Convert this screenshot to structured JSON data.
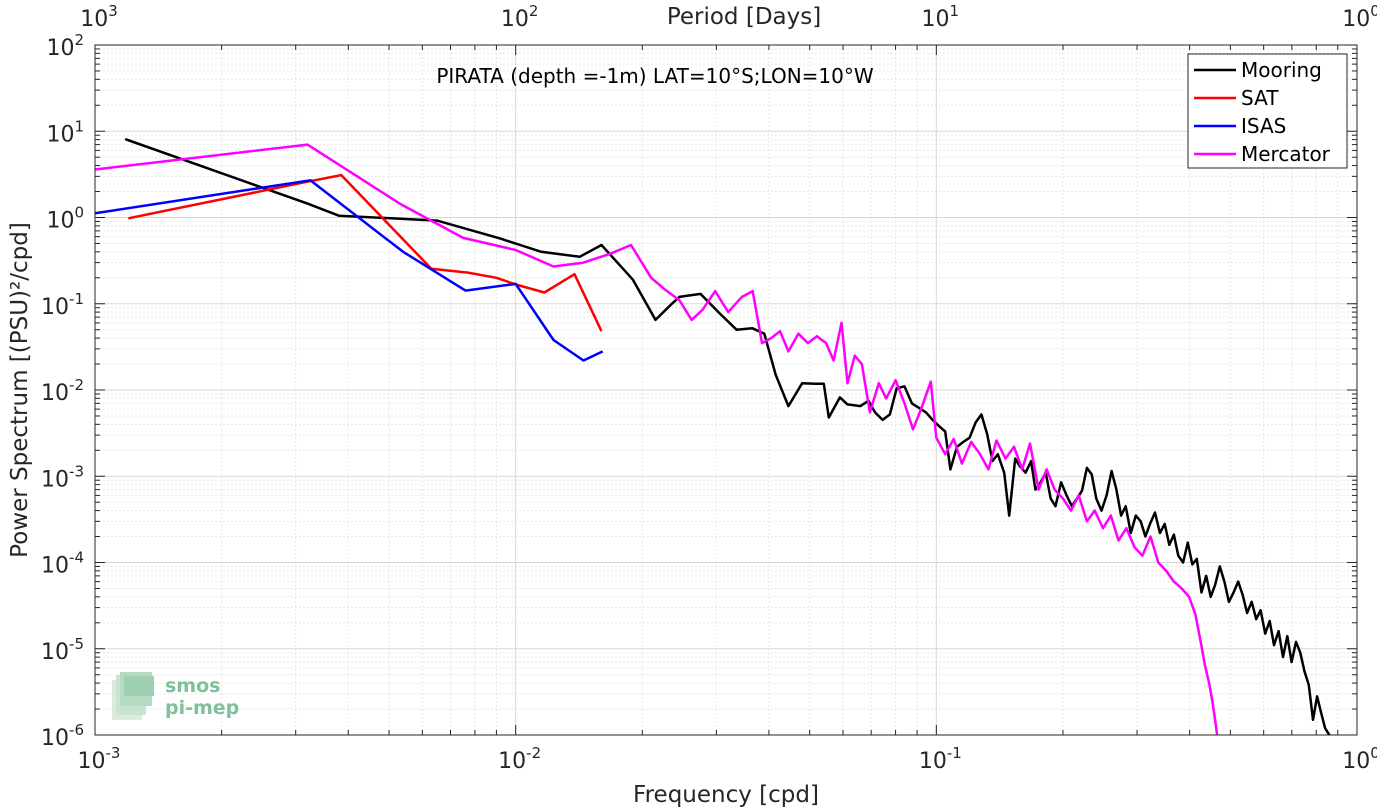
{
  "chart_data": {
    "type": "line",
    "xscale": "log",
    "yscale": "log",
    "xlabel": "Frequency [cpd]",
    "ylabel": "Power Spectrum [(PSU)²/cpd]",
    "top_xlabel": "Period [Days]",
    "xlim": [
      0.001,
      1
    ],
    "ylim": [
      1e-06,
      100
    ],
    "grid": true,
    "legend_position": "top-right",
    "annotation": "PIRATA (depth =-1m) LAT=10°S;LON=10°W",
    "x_ticks": [
      {
        "base": "10",
        "exp": "-3",
        "value": 0.001
      },
      {
        "base": "10",
        "exp": "-2",
        "value": 0.01
      },
      {
        "base": "10",
        "exp": "-1",
        "value": 0.1
      },
      {
        "base": "10",
        "exp": "0",
        "value": 1
      }
    ],
    "top_ticks": [
      {
        "base": "10",
        "exp": "3",
        "value": 0.001
      },
      {
        "base": "10",
        "exp": "2",
        "value": 0.01
      },
      {
        "base": "10",
        "exp": "1",
        "value": 0.1
      },
      {
        "base": "10",
        "exp": "0",
        "value": 1
      }
    ],
    "y_ticks": [
      {
        "base": "10",
        "exp": "2",
        "value": 100
      },
      {
        "base": "10",
        "exp": "1",
        "value": 10
      },
      {
        "base": "10",
        "exp": "0",
        "value": 1
      },
      {
        "base": "10",
        "exp": "-1",
        "value": 0.1
      },
      {
        "base": "10",
        "exp": "-2",
        "value": 0.01
      },
      {
        "base": "10",
        "exp": "-3",
        "value": 0.001
      },
      {
        "base": "10",
        "exp": "-4",
        "value": 0.0001
      },
      {
        "base": "10",
        "exp": "-5",
        "value": 1e-05
      },
      {
        "base": "10",
        "exp": "-6",
        "value": 1e-06
      }
    ],
    "series": [
      {
        "name": "Mooring",
        "color": "#000000",
        "points": [
          [
            0.00118,
            8.1
          ],
          [
            0.0032,
            1.45
          ],
          [
            0.0038,
            1.05
          ],
          [
            0.0065,
            0.92
          ],
          [
            0.0092,
            0.57
          ],
          [
            0.0115,
            0.4
          ],
          [
            0.0142,
            0.35
          ],
          [
            0.016,
            0.48
          ],
          [
            0.019,
            0.19
          ],
          [
            0.0215,
            0.065
          ],
          [
            0.0235,
            0.1
          ],
          [
            0.0245,
            0.12
          ],
          [
            0.0275,
            0.13
          ],
          [
            0.0305,
            0.078
          ],
          [
            0.0335,
            0.05
          ],
          [
            0.0365,
            0.052
          ],
          [
            0.039,
            0.045
          ],
          [
            0.0415,
            0.015
          ],
          [
            0.0445,
            0.0065
          ],
          [
            0.048,
            0.012
          ],
          [
            0.0515,
            0.0118
          ],
          [
            0.054,
            0.0118
          ],
          [
            0.0555,
            0.0048
          ],
          [
            0.059,
            0.0082
          ],
          [
            0.0615,
            0.0068
          ],
          [
            0.066,
            0.0065
          ],
          [
            0.069,
            0.0075
          ],
          [
            0.0715,
            0.0055
          ],
          [
            0.0745,
            0.0045
          ],
          [
            0.0775,
            0.0052
          ],
          [
            0.0805,
            0.0105
          ],
          [
            0.084,
            0.011
          ],
          [
            0.0875,
            0.007
          ],
          [
            0.091,
            0.0062
          ],
          [
            0.0945,
            0.0055
          ],
          [
            0.098,
            0.0045
          ],
          [
            0.1015,
            0.0038
          ],
          [
            0.105,
            0.0033
          ],
          [
            0.108,
            0.0012
          ],
          [
            0.112,
            0.0022
          ],
          [
            0.116,
            0.0025
          ],
          [
            0.12,
            0.0028
          ],
          [
            0.124,
            0.0042
          ],
          [
            0.128,
            0.0052
          ],
          [
            0.132,
            0.0031
          ],
          [
            0.136,
            0.0015
          ],
          [
            0.14,
            0.0018
          ],
          [
            0.145,
            0.0011
          ],
          [
            0.149,
            0.00035
          ],
          [
            0.154,
            0.0016
          ],
          [
            0.158,
            0.0013
          ],
          [
            0.163,
            0.0011
          ],
          [
            0.168,
            0.0015
          ],
          [
            0.172,
            0.0007
          ],
          [
            0.177,
            0.00085
          ],
          [
            0.182,
            0.0011
          ],
          [
            0.187,
            0.00055
          ],
          [
            0.192,
            0.00045
          ],
          [
            0.198,
            0.00085
          ],
          [
            0.204,
            0.0006
          ],
          [
            0.21,
            0.00045
          ],
          [
            0.216,
            0.00055
          ],
          [
            0.222,
            0.00068
          ],
          [
            0.228,
            0.00125
          ],
          [
            0.234,
            0.00105
          ],
          [
            0.24,
            0.00055
          ],
          [
            0.247,
            0.0004
          ],
          [
            0.254,
            0.0006
          ],
          [
            0.261,
            0.00115
          ],
          [
            0.268,
            0.0007
          ],
          [
            0.275,
            0.00035
          ],
          [
            0.282,
            0.00045
          ],
          [
            0.29,
            0.00022
          ],
          [
            0.298,
            0.00035
          ],
          [
            0.306,
            0.0003
          ],
          [
            0.314,
            0.0002
          ],
          [
            0.322,
            0.00028
          ],
          [
            0.331,
            0.00038
          ],
          [
            0.34,
            0.00022
          ],
          [
            0.349,
            0.00028
          ],
          [
            0.358,
            0.00016
          ],
          [
            0.367,
            0.00021
          ],
          [
            0.376,
            0.00012
          ],
          [
            0.386,
            0.0001
          ],
          [
            0.396,
            0.00017
          ],
          [
            0.406,
            9.5e-05
          ],
          [
            0.416,
            0.00011
          ],
          [
            0.427,
            4.5e-05
          ],
          [
            0.438,
            7e-05
          ],
          [
            0.449,
            4e-05
          ],
          [
            0.46,
            5.5e-05
          ],
          [
            0.472,
            9e-05
          ],
          [
            0.484,
            6e-05
          ],
          [
            0.496,
            3.5e-05
          ],
          [
            0.509,
            4.5e-05
          ],
          [
            0.522,
            6e-05
          ],
          [
            0.535,
            4.2e-05
          ],
          [
            0.548,
            2.6e-05
          ],
          [
            0.562,
            3.5e-05
          ],
          [
            0.576,
            2.2e-05
          ],
          [
            0.59,
            2.8e-05
          ],
          [
            0.605,
            1.5e-05
          ],
          [
            0.62,
            2.1e-05
          ],
          [
            0.635,
            1.1e-05
          ],
          [
            0.651,
            1.6e-05
          ],
          [
            0.667,
            8e-06
          ],
          [
            0.683,
            1.4e-05
          ],
          [
            0.699,
            7e-06
          ],
          [
            0.716,
            1.2e-05
          ],
          [
            0.733,
            9e-06
          ],
          [
            0.75,
            5.5e-06
          ],
          [
            0.768,
            3.8e-06
          ],
          [
            0.786,
            1.5e-06
          ],
          [
            0.804,
            2.8e-06
          ],
          [
            0.822,
            1.8e-06
          ],
          [
            0.84,
            1.2e-06
          ],
          [
            0.86,
            1e-06
          ]
        ]
      },
      {
        "name": "SAT",
        "color": "#ff0000",
        "points": [
          [
            0.0012,
            0.98
          ],
          [
            0.0032,
            2.6
          ],
          [
            0.00385,
            3.1
          ],
          [
            0.0063,
            0.255
          ],
          [
            0.0077,
            0.23
          ],
          [
            0.009,
            0.2
          ],
          [
            0.0101,
            0.165
          ],
          [
            0.0117,
            0.135
          ],
          [
            0.0138,
            0.22
          ],
          [
            0.016,
            0.048
          ]
        ]
      },
      {
        "name": "ISAS",
        "color": "#0000ff",
        "points": [
          [
            0.001,
            1.12
          ],
          [
            0.00325,
            2.7
          ],
          [
            0.0054,
            0.4
          ],
          [
            0.0076,
            0.142
          ],
          [
            0.01,
            0.17
          ],
          [
            0.0123,
            0.038
          ],
          [
            0.0145,
            0.022
          ],
          [
            0.0161,
            0.028
          ]
        ]
      },
      {
        "name": "Mercator",
        "color": "#ff00ff",
        "points": [
          [
            0.001,
            3.6
          ],
          [
            0.0032,
            7.0
          ],
          [
            0.0053,
            1.45
          ],
          [
            0.0075,
            0.58
          ],
          [
            0.01,
            0.42
          ],
          [
            0.0123,
            0.27
          ],
          [
            0.0145,
            0.3
          ],
          [
            0.0168,
            0.38
          ],
          [
            0.0188,
            0.48
          ],
          [
            0.021,
            0.2
          ],
          [
            0.0225,
            0.15
          ],
          [
            0.0245,
            0.11
          ],
          [
            0.0262,
            0.065
          ],
          [
            0.0278,
            0.085
          ],
          [
            0.0298,
            0.14
          ],
          [
            0.032,
            0.08
          ],
          [
            0.0345,
            0.12
          ],
          [
            0.0366,
            0.14
          ],
          [
            0.0385,
            0.035
          ],
          [
            0.0405,
            0.04
          ],
          [
            0.0425,
            0.048
          ],
          [
            0.0445,
            0.028
          ],
          [
            0.047,
            0.045
          ],
          [
            0.0495,
            0.035
          ],
          [
            0.052,
            0.042
          ],
          [
            0.0547,
            0.035
          ],
          [
            0.057,
            0.022
          ],
          [
            0.0595,
            0.06
          ],
          [
            0.0615,
            0.012
          ],
          [
            0.064,
            0.025
          ],
          [
            0.0665,
            0.02
          ],
          [
            0.0695,
            0.0055
          ],
          [
            0.073,
            0.012
          ],
          [
            0.076,
            0.008
          ],
          [
            0.08,
            0.013
          ],
          [
            0.084,
            0.007
          ],
          [
            0.088,
            0.0035
          ],
          [
            0.092,
            0.006
          ],
          [
            0.097,
            0.0125
          ],
          [
            0.1,
            0.0028
          ],
          [
            0.105,
            0.0018
          ],
          [
            0.11,
            0.0027
          ],
          [
            0.115,
            0.0014
          ],
          [
            0.121,
            0.0025
          ],
          [
            0.127,
            0.0018
          ],
          [
            0.133,
            0.0012
          ],
          [
            0.139,
            0.0026
          ],
          [
            0.146,
            0.0016
          ],
          [
            0.153,
            0.0022
          ],
          [
            0.16,
            0.0012
          ],
          [
            0.167,
            0.0024
          ],
          [
            0.175,
            0.0007
          ],
          [
            0.183,
            0.0012
          ],
          [
            0.191,
            0.0007
          ],
          [
            0.2,
            0.00055
          ],
          [
            0.209,
            0.0004
          ],
          [
            0.218,
            0.0006
          ],
          [
            0.228,
            0.0003
          ],
          [
            0.238,
            0.0004
          ],
          [
            0.249,
            0.00025
          ],
          [
            0.26,
            0.00035
          ],
          [
            0.271,
            0.00018
          ],
          [
            0.283,
            0.00025
          ],
          [
            0.296,
            0.00015
          ],
          [
            0.309,
            0.00012
          ],
          [
            0.323,
            0.0002
          ],
          [
            0.337,
            0.0001
          ],
          [
            0.352,
            8e-05
          ],
          [
            0.367,
            6e-05
          ],
          [
            0.383,
            5e-05
          ],
          [
            0.399,
            4e-05
          ],
          [
            0.413,
            2.5e-05
          ],
          [
            0.425,
            1.2e-05
          ],
          [
            0.435,
            6.5e-06
          ],
          [
            0.445,
            4e-06
          ],
          [
            0.453,
            2.5e-06
          ],
          [
            0.46,
            1.5e-06
          ],
          [
            0.465,
            1e-06
          ]
        ]
      }
    ]
  },
  "logo": {
    "line1": "smos",
    "line2": "pi-mep"
  }
}
